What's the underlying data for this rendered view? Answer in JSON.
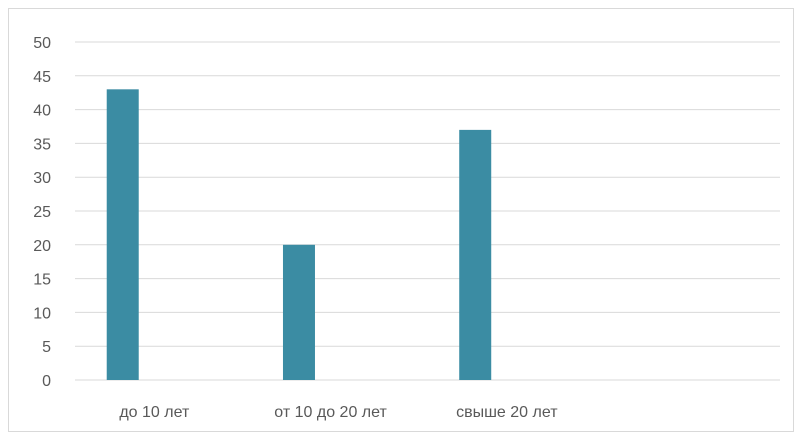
{
  "chart_data": {
    "type": "bar",
    "categories": [
      "до 10 лет",
      "от 10 до 20 лет",
      "свыше 20 лет",
      ""
    ],
    "values": [
      43,
      20,
      37,
      null
    ],
    "ylim": [
      0,
      50
    ],
    "yticks": [
      0,
      5,
      10,
      15,
      20,
      25,
      30,
      35,
      40,
      45,
      50
    ],
    "grid": true,
    "legend": "none",
    "bar_color": "#3b8ca3",
    "grid_color": "#d9d9d9"
  }
}
